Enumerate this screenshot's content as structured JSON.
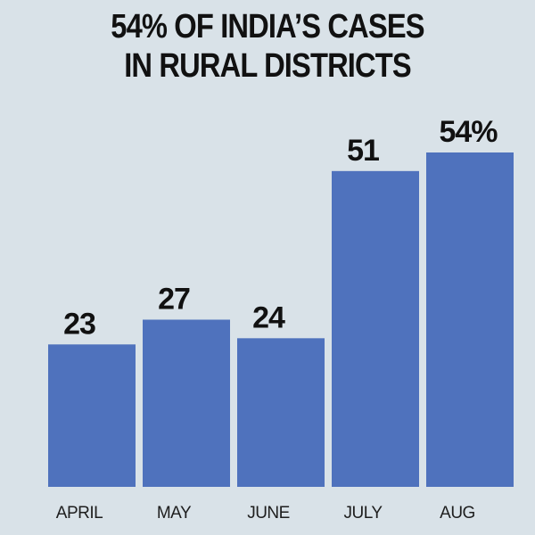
{
  "title": {
    "line1": "54% OF INDIA’S CASES",
    "line2": "IN RURAL DISTRICTS"
  },
  "colors": {
    "background": "#d9e2e8",
    "bar": "#4f72bd",
    "text": "#111111"
  },
  "chart_data": {
    "type": "bar",
    "title": "54% OF INDIA’S CASES IN RURAL DISTRICTS",
    "xlabel": "",
    "ylabel": "",
    "categories": [
      "APRIL",
      "MAY",
      "JUNE",
      "JULY",
      "AUG"
    ],
    "values": [
      23,
      27,
      24,
      51,
      54
    ],
    "data_labels": [
      "23",
      "27",
      "24",
      "51",
      "54%"
    ],
    "unit": "%",
    "ylim": [
      0,
      54
    ],
    "grid": false,
    "legend": "none"
  }
}
